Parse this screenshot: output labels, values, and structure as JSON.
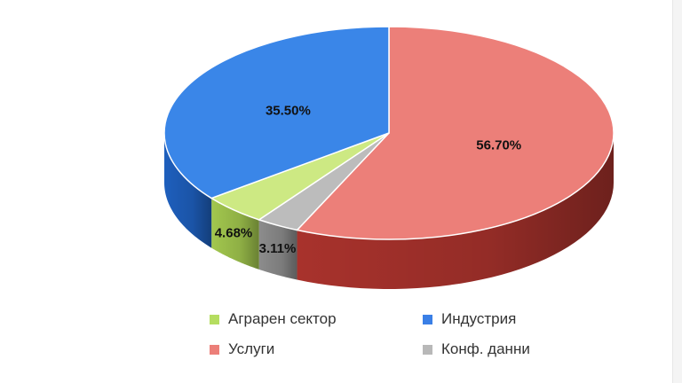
{
  "chart_data": {
    "type": "pie",
    "style": "3d",
    "title": "",
    "slices": [
      {
        "label": "Услуги",
        "value": 56.7,
        "display": "56.70%",
        "color": "#ec7f79",
        "side_color": "#a8322c"
      },
      {
        "label": "Конф. данни",
        "value": 3.11,
        "display": "3.11%",
        "color": "#bcbcbc",
        "side_color": "#8c8c8c"
      },
      {
        "label": "Аграрен сектор",
        "value": 4.68,
        "display": "4.68%",
        "color": "#cde983",
        "side_color": "#a2c74e"
      },
      {
        "label": "Индустрия",
        "value": 35.5,
        "display": "35.50%",
        "color": "#3a86e8",
        "side_color": "#1e5fbd"
      }
    ],
    "legend": {
      "placement": "bottom",
      "items": [
        {
          "label": "Аграрен сектор",
          "color": "#b5dd60"
        },
        {
          "label": "Индустрия",
          "color": "#3a7fe6"
        },
        {
          "label": "Услуги",
          "color": "#ec7f79"
        },
        {
          "label": "Конф. данни",
          "color": "#b8b8b8"
        }
      ]
    }
  }
}
